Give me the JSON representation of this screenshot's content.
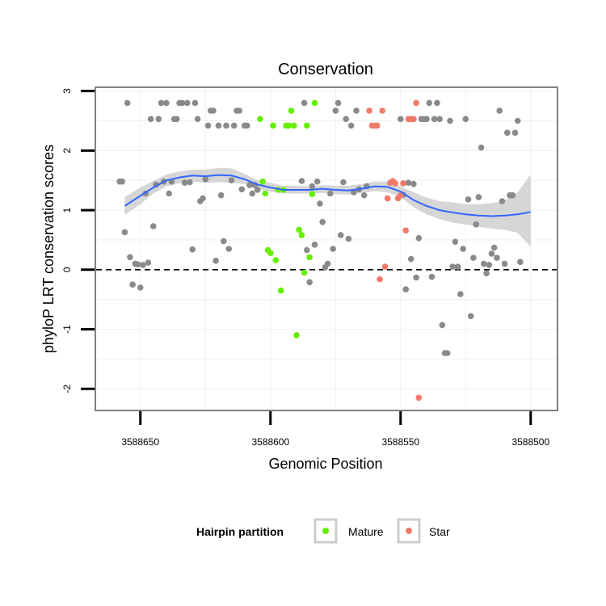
{
  "chart_data": {
    "type": "scatter",
    "title": "Conservation",
    "xlabel": "Genomic Position",
    "ylabel": "phyloP LRT conservation scores",
    "x_reversed": true,
    "xlim": [
      3588667,
      3588490
    ],
    "ylim": [
      -2.35,
      3.05
    ],
    "x_ticks": [
      3588650,
      3588600,
      3588550,
      3588500
    ],
    "x_tick_labels": [
      "3588650",
      "3588600",
      "3588550",
      "3588500"
    ],
    "y_ticks": [
      -2,
      -1,
      0,
      1,
      2,
      3
    ],
    "y_tick_labels": [
      "-2",
      "-1",
      "0",
      "1",
      "2",
      "3"
    ],
    "grid": true,
    "reference_line": {
      "y": 0,
      "style": "dashed"
    },
    "legend": {
      "title": "Hairpin partition",
      "position": "bottom",
      "entries": [
        {
          "label": "Mature",
          "color": "#66ee00"
        },
        {
          "label": "Star",
          "color": "#f07a6a"
        }
      ]
    },
    "colors": {
      "other": "#8a8a8a",
      "Mature": "#66ee00",
      "Star": "#f07a6a",
      "smooth": "#3366ff",
      "band": "#cfcfcf"
    },
    "series": [
      {
        "name": "Other",
        "points": [
          [
            3588658,
            1.48
          ],
          [
            3588657,
            1.48
          ],
          [
            3588656,
            0.63
          ],
          [
            3588655,
            2.8
          ],
          [
            3588654,
            0.21
          ],
          [
            3588653,
            -0.25
          ],
          [
            3588652,
            0.1
          ],
          [
            3588651,
            0.09
          ],
          [
            3588650,
            -0.3
          ],
          [
            3588649,
            0.08
          ],
          [
            3588648,
            1.28
          ],
          [
            3588647,
            0.12
          ],
          [
            3588646,
            2.53
          ],
          [
            3588645,
            0.73
          ],
          [
            3588644,
            1.43
          ],
          [
            3588643,
            2.53
          ],
          [
            3588642,
            2.8
          ],
          [
            3588641,
            1.48
          ],
          [
            3588640,
            2.8
          ],
          [
            3588639,
            1.28
          ],
          [
            3588638,
            1.48
          ],
          [
            3588637,
            2.53
          ],
          [
            3588636,
            2.53
          ],
          [
            3588635,
            2.8
          ],
          [
            3588634,
            2.8
          ],
          [
            3588633,
            1.46
          ],
          [
            3588632,
            2.8
          ],
          [
            3588631,
            1.47
          ],
          [
            3588630,
            0.34
          ],
          [
            3588629,
            2.8
          ],
          [
            3588628,
            2.53
          ],
          [
            3588627,
            1.15
          ],
          [
            3588626,
            1.2
          ],
          [
            3588625,
            1.52
          ],
          [
            3588624,
            2.42
          ],
          [
            3588623,
            2.67
          ],
          [
            3588622,
            2.67
          ],
          [
            3588621,
            0.15
          ],
          [
            3588620,
            2.42
          ],
          [
            3588619,
            1.25
          ],
          [
            3588618,
            0.48
          ],
          [
            3588617,
            2.42
          ],
          [
            3588616,
            0.35
          ],
          [
            3588615,
            1.5
          ],
          [
            3588614,
            2.42
          ],
          [
            3588613,
            2.67
          ],
          [
            3588612,
            2.67
          ],
          [
            3588611,
            1.35
          ],
          [
            3588610,
            2.42
          ],
          [
            3588609,
            2.42
          ],
          [
            3588608,
            1.42
          ],
          [
            3588607,
            1.28
          ],
          [
            3588606,
            1.42
          ],
          [
            3588605,
            1.34
          ],
          [
            3588588,
            1.49
          ],
          [
            3588587,
            2.8
          ],
          [
            3588586,
            0.33
          ],
          [
            3588585,
            -0.21
          ],
          [
            3588584,
            1.4
          ],
          [
            3588583,
            0.42
          ],
          [
            3588582,
            1.48
          ],
          [
            3588581,
            1.11
          ],
          [
            3588580,
            0.8
          ],
          [
            3588579,
            0.04
          ],
          [
            3588578,
            0.1
          ],
          [
            3588577,
            1.28
          ],
          [
            3588576,
            0.35
          ],
          [
            3588575,
            2.67
          ],
          [
            3588574,
            2.8
          ],
          [
            3588573,
            0.58
          ],
          [
            3588572,
            1.47
          ],
          [
            3588571,
            2.53
          ],
          [
            3588570,
            0.52
          ],
          [
            3588569,
            2.42
          ],
          [
            3588568,
            1.3
          ],
          [
            3588567,
            2.67
          ],
          [
            3588566,
            1.35
          ],
          [
            3588564,
            1.25
          ],
          [
            3588563,
            1.4
          ],
          [
            3588550,
            2.53
          ],
          [
            3588549,
            1.26
          ],
          [
            3588548,
            -0.33
          ],
          [
            3588547,
            1.46
          ],
          [
            3588546,
            0.18
          ],
          [
            3588545,
            1.44
          ],
          [
            3588544,
            -0.13
          ],
          [
            3588543,
            0.53
          ],
          [
            3588542,
            2.53
          ],
          [
            3588541,
            2.53
          ],
          [
            3588540,
            2.53
          ],
          [
            3588539,
            2.8
          ],
          [
            3588538,
            -0.12
          ],
          [
            3588537,
            2.53
          ],
          [
            3588536,
            2.8
          ],
          [
            3588535,
            2.53
          ],
          [
            3588534,
            -0.93
          ],
          [
            3588533,
            -1.4
          ],
          [
            3588532,
            -1.4
          ],
          [
            3588531,
            2.5
          ],
          [
            3588530,
            0.05
          ],
          [
            3588529,
            0.47
          ],
          [
            3588528,
            0.05
          ],
          [
            3588527,
            -0.41
          ],
          [
            3588526,
            0.35
          ],
          [
            3588525,
            2.53
          ],
          [
            3588524,
            1.18
          ],
          [
            3588523,
            -0.78
          ],
          [
            3588522,
            0.2
          ],
          [
            3588521,
            0.76
          ],
          [
            3588520,
            1.22
          ],
          [
            3588519,
            2.05
          ],
          [
            3588518,
            0.1
          ],
          [
            3588517,
            -0.06
          ],
          [
            3588516,
            0.08
          ],
          [
            3588515,
            0.27
          ],
          [
            3588514,
            0.37
          ],
          [
            3588513,
            0.2
          ],
          [
            3588512,
            2.67
          ],
          [
            3588511,
            1.15
          ],
          [
            3588510,
            0.1
          ],
          [
            3588509,
            2.3
          ],
          [
            3588508,
            1.25
          ],
          [
            3588507,
            1.25
          ],
          [
            3588506,
            2.3
          ],
          [
            3588505,
            2.5
          ],
          [
            3588504,
            0.13
          ]
        ]
      },
      {
        "name": "Mature",
        "points": [
          [
            3588604,
            2.53
          ],
          [
            3588603,
            1.48
          ],
          [
            3588602,
            1.28
          ],
          [
            3588601,
            0.33
          ],
          [
            3588600,
            0.28
          ],
          [
            3588599,
            2.42
          ],
          [
            3588598,
            0.16
          ],
          [
            3588597,
            1.34
          ],
          [
            3588596,
            -0.35
          ],
          [
            3588595,
            1.34
          ],
          [
            3588594,
            2.42
          ],
          [
            3588593,
            2.42
          ],
          [
            3588592,
            2.67
          ],
          [
            3588591,
            2.42
          ],
          [
            3588590,
            -1.1
          ],
          [
            3588589,
            0.67
          ],
          [
            3588588,
            0.58
          ],
          [
            3588587,
            -0.05
          ],
          [
            3588586,
            2.42
          ],
          [
            3588585,
            0.21
          ],
          [
            3588584,
            1.27
          ],
          [
            3588583,
            2.8
          ]
        ]
      },
      {
        "name": "Star",
        "points": [
          [
            3588562,
            2.67
          ],
          [
            3588561,
            2.42
          ],
          [
            3588560,
            2.42
          ],
          [
            3588559,
            2.42
          ],
          [
            3588558,
            -0.16
          ],
          [
            3588557,
            2.67
          ],
          [
            3588556,
            0.05
          ],
          [
            3588555,
            1.2
          ],
          [
            3588554,
            1.46
          ],
          [
            3588553,
            1.49
          ],
          [
            3588552,
            1.45
          ],
          [
            3588551,
            1.2
          ],
          [
            3588550,
            1.25
          ],
          [
            3588549,
            1.45
          ],
          [
            3588548,
            0.66
          ],
          [
            3588547,
            2.53
          ],
          [
            3588546,
            2.53
          ],
          [
            3588545,
            2.53
          ],
          [
            3588544,
            2.8
          ],
          [
            3588543,
            -2.15
          ]
        ]
      }
    ],
    "smooth": {
      "x": [
        3588656,
        3588650,
        3588645,
        3588640,
        3588635,
        3588630,
        3588625,
        3588620,
        3588615,
        3588610,
        3588605,
        3588600,
        3588595,
        3588590,
        3588585,
        3588580,
        3588575,
        3588570,
        3588565,
        3588560,
        3588555,
        3588550,
        3588545,
        3588540,
        3588535,
        3588530,
        3588525,
        3588520,
        3588515,
        3588510,
        3588505,
        3588500
      ],
      "y": [
        1.07,
        1.24,
        1.38,
        1.5,
        1.55,
        1.58,
        1.57,
        1.59,
        1.58,
        1.52,
        1.43,
        1.38,
        1.34,
        1.34,
        1.34,
        1.36,
        1.34,
        1.33,
        1.36,
        1.4,
        1.39,
        1.31,
        1.17,
        1.07,
        1.0,
        0.96,
        0.93,
        0.91,
        0.9,
        0.91,
        0.93,
        0.97
      ],
      "lower": [
        0.92,
        1.1,
        1.28,
        1.4,
        1.45,
        1.48,
        1.46,
        1.47,
        1.46,
        1.44,
        1.36,
        1.31,
        1.28,
        1.28,
        1.28,
        1.29,
        1.27,
        1.26,
        1.29,
        1.32,
        1.3,
        1.22,
        1.05,
        0.93,
        0.85,
        0.79,
        0.76,
        0.72,
        0.69,
        0.67,
        0.62,
        0.38
      ],
      "upper": [
        1.22,
        1.38,
        1.49,
        1.6,
        1.65,
        1.68,
        1.68,
        1.71,
        1.7,
        1.61,
        1.5,
        1.46,
        1.41,
        1.41,
        1.4,
        1.42,
        1.41,
        1.41,
        1.44,
        1.48,
        1.48,
        1.4,
        1.3,
        1.21,
        1.15,
        1.13,
        1.1,
        1.1,
        1.12,
        1.16,
        1.3,
        1.6
      ]
    }
  }
}
